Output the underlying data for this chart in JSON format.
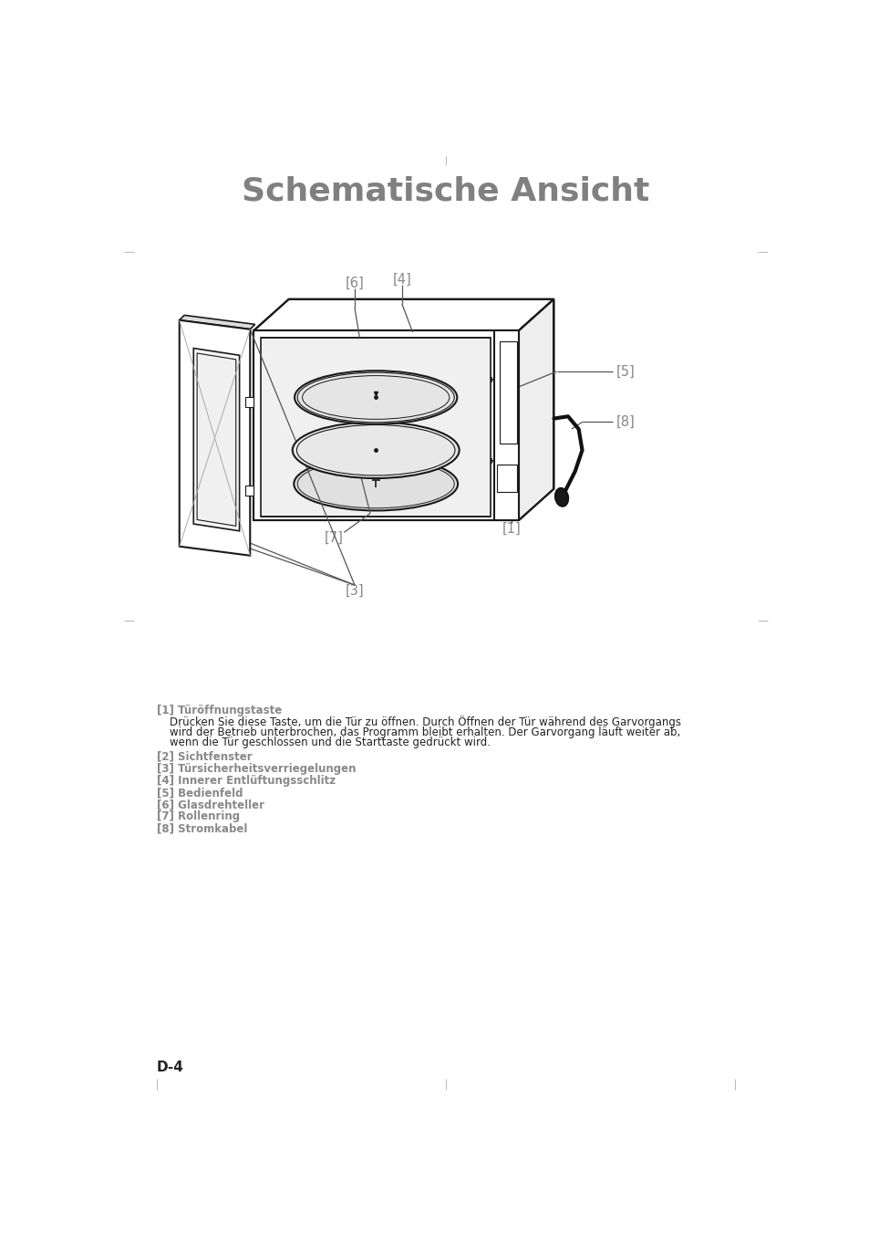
{
  "title": "Schematische Ansicht",
  "title_color": "#808080",
  "title_fontsize": 26,
  "title_fontweight": "bold",
  "background_color": "#ffffff",
  "line_color": "#1a1a1a",
  "label_color": "#888888",
  "page_label": "D-4",
  "descriptions": [
    {
      "label": "[1]",
      "title": "Türöffnungstaste",
      "body": "Drücken Sie diese Taste, um die Tür zu öffnen. Durch Öffnen der Tür während des Garvorgangs\nwird der Betrieb unterbrochen, das Programm bleibt erhalten. Der Garvorgang läuft weiter ab,\nwenn die Tür geschlossen und die Starttaste gedrückt wird."
    },
    {
      "label": "[2]",
      "title": "Sichtfenster",
      "body": ""
    },
    {
      "label": "[3]",
      "title": "Türsicherheitsverriegelungen",
      "body": ""
    },
    {
      "label": "[4]",
      "title": "Innerer Entlüftungsschlitz",
      "body": ""
    },
    {
      "label": "[5]",
      "title": "Bedienfeld",
      "body": ""
    },
    {
      "label": "[6]",
      "title": "Glasdrehteller",
      "body": ""
    },
    {
      "label": "[7]",
      "title": "Rollenring",
      "body": ""
    },
    {
      "label": "[8]",
      "title": "Stromkabel",
      "body": ""
    }
  ]
}
